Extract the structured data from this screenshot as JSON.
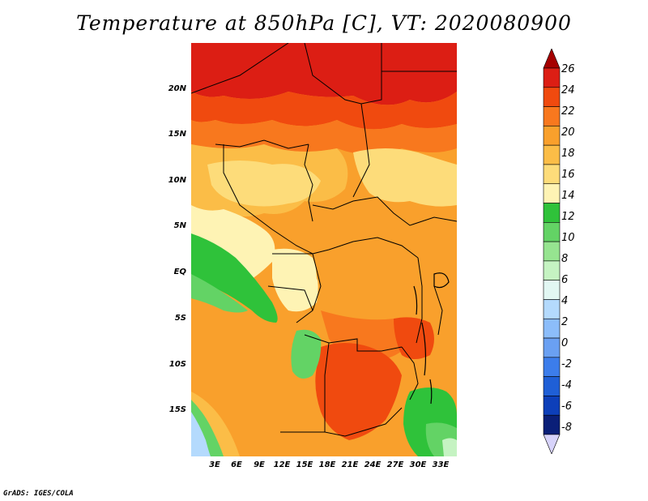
{
  "title": "Temperature at 850hPa [C], VT: 2020080900",
  "credit": "GrADS: IGES/COLA",
  "map": {
    "lat_labels": [
      "20N",
      "15N",
      "10N",
      "5N",
      "EQ",
      "5S",
      "10S",
      "15S"
    ],
    "lon_labels": [
      "3E",
      "6E",
      "9E",
      "12E",
      "15E",
      "18E",
      "21E",
      "24E",
      "27E",
      "30E",
      "33E"
    ]
  },
  "colorbar": {
    "labels": [
      "26",
      "24",
      "22",
      "20",
      "18",
      "16",
      "14",
      "12",
      "10",
      "8",
      "6",
      "4",
      "2",
      "0",
      "-2",
      "-4",
      "-6",
      "-8"
    ],
    "colors": [
      "#a50000",
      "#dc1e14",
      "#f04a0f",
      "#f8781e",
      "#f9a02c",
      "#fbbd47",
      "#fddc7a",
      "#fef3b4",
      "#2fc23a",
      "#63d365",
      "#96e490",
      "#c5f3c2",
      "#e2f7f3",
      "#b4dafd",
      "#8cbdfa",
      "#6aa0f2",
      "#3c7deb",
      "#1f5fd6",
      "#0d3fb9",
      "#0a1f78",
      "#d7d3fb"
    ]
  }
}
